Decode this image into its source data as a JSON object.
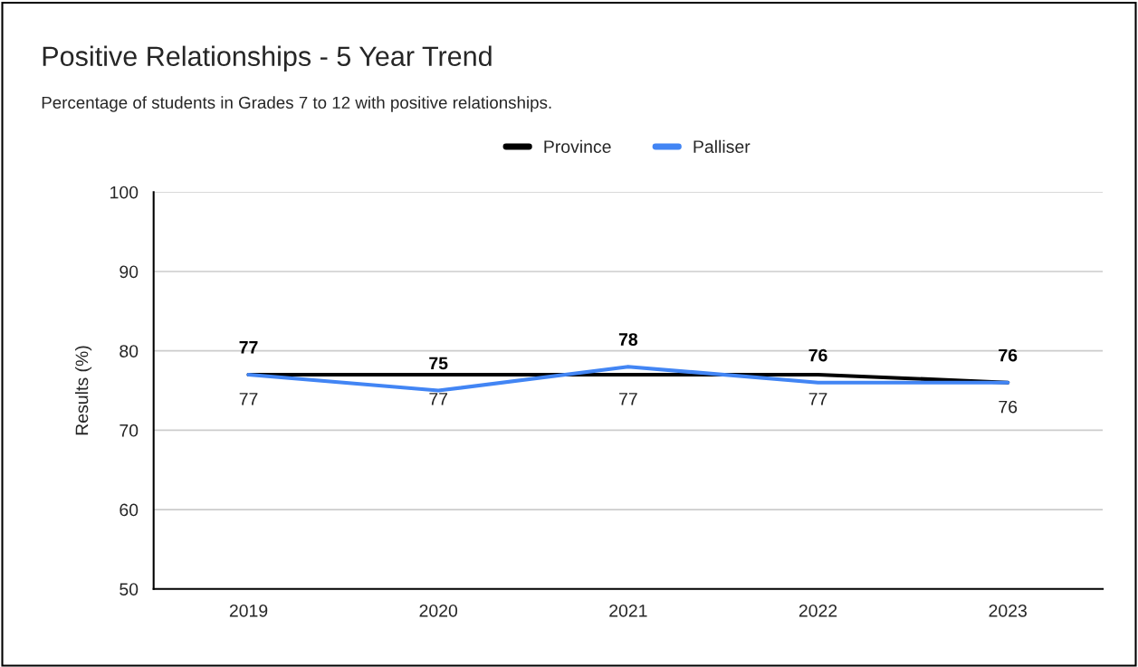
{
  "chart_data": {
    "type": "line",
    "title": "Positive Relationships - 5 Year Trend",
    "subtitle": "Percentage of students in Grades 7 to 12 with positive relationships.",
    "ylabel": "Results (%)",
    "categories": [
      "2019",
      "2020",
      "2021",
      "2022",
      "2023"
    ],
    "series": [
      {
        "name": "Province",
        "color": "#000000",
        "values": [
          77,
          77,
          77,
          77,
          76
        ]
      },
      {
        "name": "Palliser",
        "color": "#4285f4",
        "values": [
          77,
          75,
          78,
          76,
          76
        ]
      }
    ],
    "ylim": [
      50,
      100
    ],
    "yticks": [
      50,
      60,
      70,
      80,
      90,
      100
    ],
    "grid": "y",
    "legend": "top",
    "data_labels": true,
    "marker": "none",
    "line_style": "solid"
  }
}
